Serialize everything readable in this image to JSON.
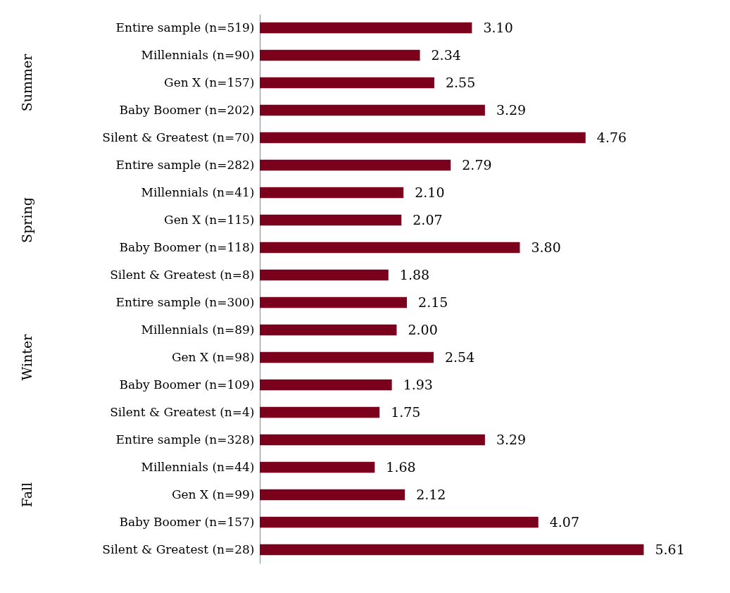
{
  "chart_data": {
    "type": "bar",
    "orientation": "horizontal",
    "categories": [
      "Entire sample (n=519)",
      "Millennials (n=90)",
      "Gen X (n=157)",
      "Baby  Boomer (n=202)",
      "Silent & Greatest (n=70)",
      "Entire sample (n=282)",
      "Millennials (n=41)",
      "Gen X (n=115)",
      "Baby Boomer (n=118)",
      "Silent & Greatest (n=8)",
      "Entire sample (n=300)",
      "Millennials (n=89)",
      "Gen X (n=98)",
      "Baby Boomer (n=109)",
      "Silent & Greatest (n=4)",
      "Entire sample (n=328)",
      "Millennials (n=44)",
      "Gen X (n=99)",
      "Baby Boomer (n=157)",
      "Silent & Greatest (n=28)"
    ],
    "values": [
      3.1,
      2.34,
      2.55,
      3.29,
      4.76,
      2.79,
      2.1,
      2.07,
      3.8,
      1.88,
      2.15,
      2.0,
      2.54,
      1.93,
      1.75,
      3.29,
      1.68,
      2.12,
      4.07,
      5.61
    ],
    "value_labels": [
      "3.10",
      "2.34",
      "2.55",
      "3.29",
      "4.76",
      "2.79",
      "2.10",
      "2.07",
      "3.80",
      "1.88",
      "2.15",
      "2.00",
      "2.54",
      "1.93",
      "1.75",
      "3.29",
      "1.68",
      "2.12",
      "4.07",
      "5.61"
    ],
    "color": "#7b001c",
    "annotations": [
      "Summer",
      "Spring",
      "Winter",
      "Fall"
    ]
  }
}
